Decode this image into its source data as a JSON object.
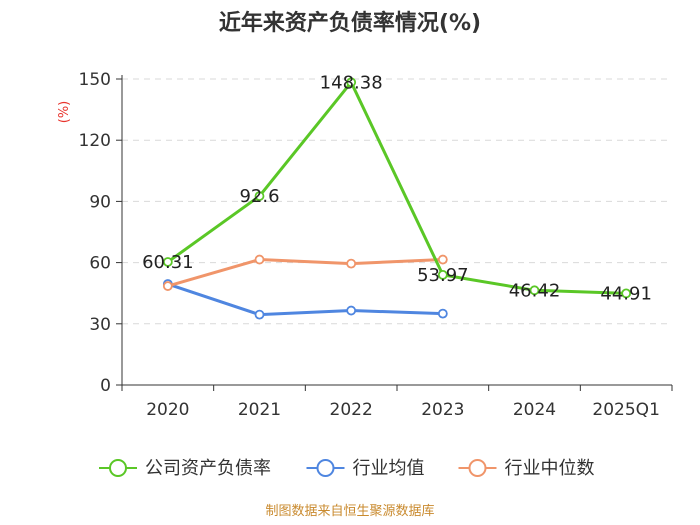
{
  "chart_data": {
    "type": "line",
    "title": "近年来资产负债率情况(%)",
    "ylabel": "(%)",
    "xlabel": "",
    "categories": [
      "2020",
      "2021",
      "2022",
      "2023",
      "2024",
      "2025Q1"
    ],
    "ylim": [
      0,
      150
    ],
    "yticks": [
      0,
      30,
      60,
      90,
      120,
      150
    ],
    "grid": true,
    "legend_position": "bottom",
    "series": [
      {
        "name": "公司资产负债率",
        "color": "#5ac726",
        "values": [
          60.31,
          92.6,
          148.38,
          53.97,
          46.42,
          44.91
        ],
        "labels": [
          "60.31",
          "92.6",
          "148.38",
          "53.97",
          "46.42",
          "44.91"
        ]
      },
      {
        "name": "行业均值",
        "color": "#4f86e0",
        "values": [
          49.5,
          34.5,
          36.5,
          35.0,
          null,
          null
        ]
      },
      {
        "name": "行业中位数",
        "color": "#f0956a",
        "values": [
          48.5,
          61.5,
          59.5,
          61.5,
          null,
          null
        ]
      }
    ],
    "source": "制图数据来自恒生聚源数据库"
  }
}
